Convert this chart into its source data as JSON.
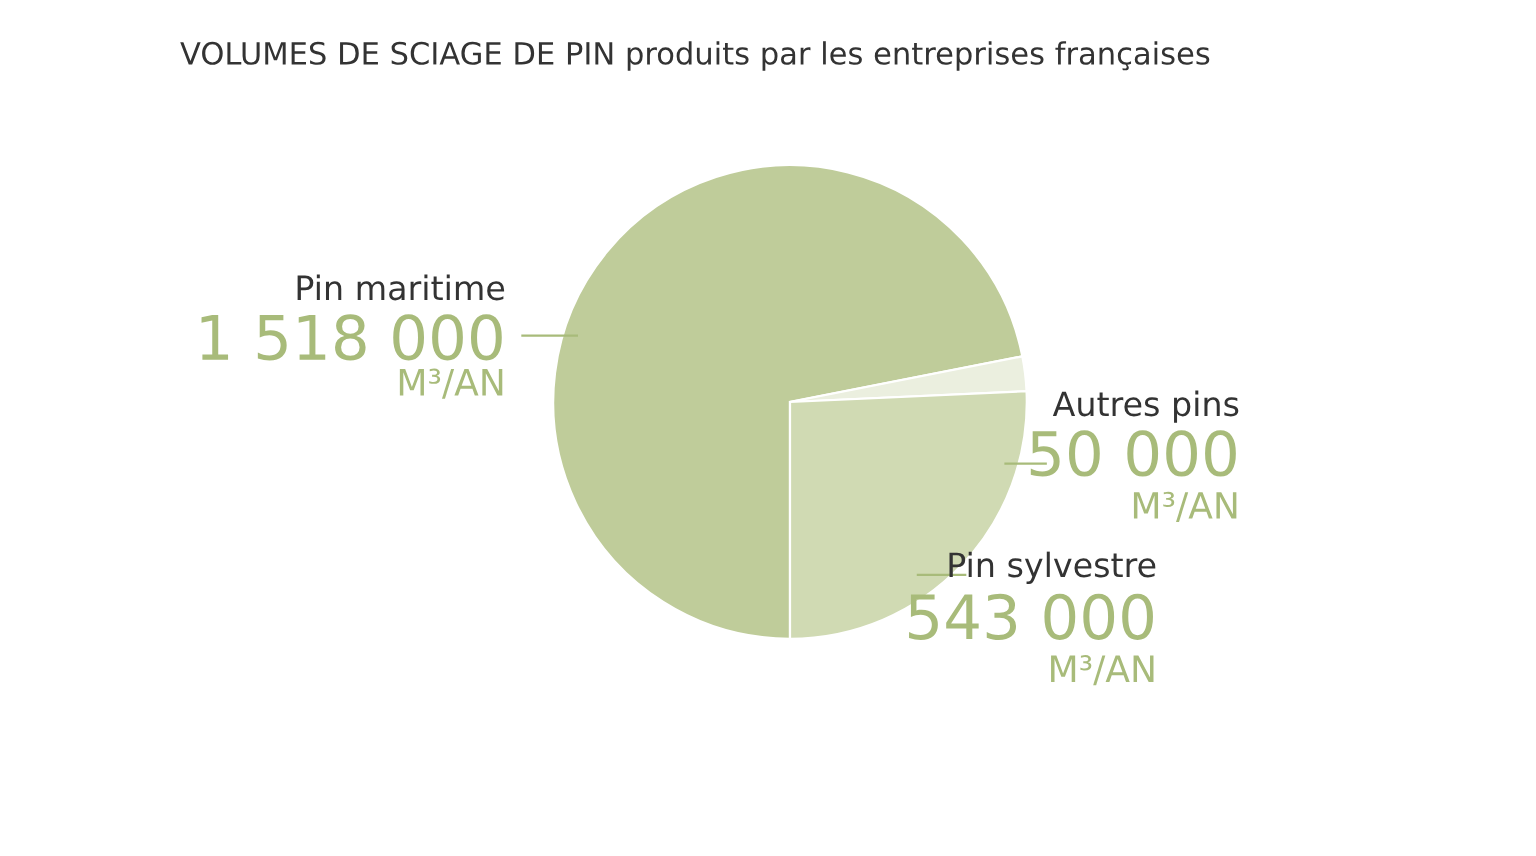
{
  "chart_data": {
    "type": "pie",
    "title": "VOLUMES DE SCIAGE DE PIN produits par les entreprises françaises",
    "categories": [
      "Pin maritime",
      "Autres pins",
      "Pin sylvestre"
    ],
    "values": [
      1518000,
      50000,
      543000
    ],
    "colors": [
      "#bfcc9a",
      "#ebefdf",
      "#d0dab3"
    ],
    "value_labels": [
      "1 518 000",
      "50 000",
      "543 000"
    ],
    "annotations": [
      "M³/AN",
      "M³/AN",
      "M³/AN"
    ]
  }
}
